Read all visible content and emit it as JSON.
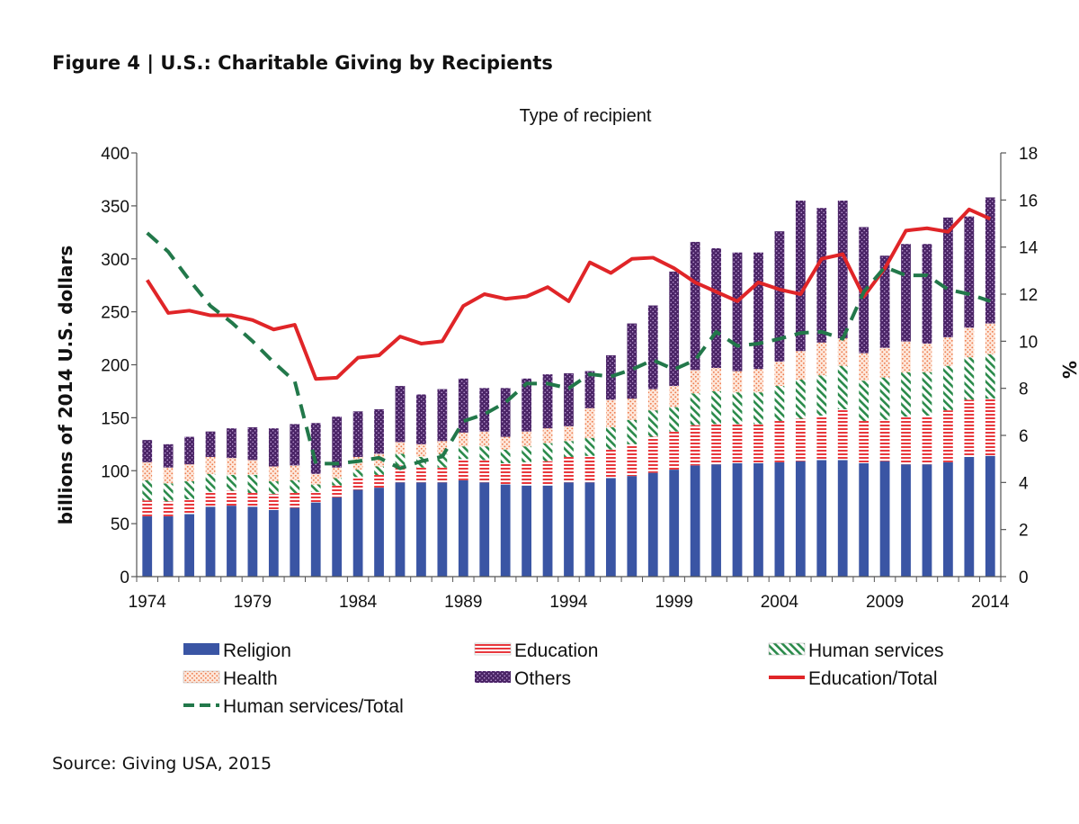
{
  "figure": {
    "title": "Figure 4 | U.S.: Charitable Giving by Recipients",
    "source": "Source: Giving USA, 2015"
  },
  "colors": {
    "religion": "#3a55a4",
    "education": "#e8383d",
    "human_services": "#2a8a4a",
    "health": "#f4a07a",
    "others": "#4a2466",
    "education_total_line": "#e02528",
    "human_services_total_line": "#22784a"
  },
  "chart_data": {
    "type": "bar",
    "stacked": true,
    "title": "Type of recipient",
    "ylabel": "billions of 2014 U.S. dollars",
    "y2label": "%",
    "ylim": [
      0,
      400
    ],
    "y2lim": [
      0,
      18
    ],
    "yticks": [
      0,
      50,
      100,
      150,
      200,
      250,
      300,
      350,
      400
    ],
    "y2ticks": [
      0,
      2,
      4,
      6,
      8,
      10,
      12,
      14,
      16,
      18
    ],
    "xtick_labels": [
      "1974",
      "1979",
      "1984",
      "1989",
      "1994",
      "1999",
      "2004",
      "2009",
      "2014"
    ],
    "gridlines": false,
    "legend_position": "bottom",
    "categories": [
      1974,
      1975,
      1976,
      1977,
      1978,
      1979,
      1980,
      1981,
      1982,
      1983,
      1984,
      1985,
      1986,
      1987,
      1988,
      1989,
      1990,
      1991,
      1992,
      1993,
      1994,
      1995,
      1996,
      1997,
      1998,
      1999,
      2000,
      2001,
      2002,
      2003,
      2004,
      2005,
      2006,
      2007,
      2008,
      2009,
      2010,
      2011,
      2012,
      2013,
      2014
    ],
    "series": [
      {
        "name": "Religion",
        "key": "religion",
        "axis": "left",
        "kind": "bar",
        "values": [
          57,
          57,
          59,
          66,
          67,
          66,
          63,
          65,
          70,
          75,
          82,
          84,
          89,
          89,
          89,
          91,
          89,
          87,
          86,
          86,
          89,
          89,
          93,
          95,
          98,
          101,
          105,
          106,
          107,
          107,
          108,
          109,
          110,
          110,
          107,
          109,
          106,
          106,
          108,
          113,
          114
        ]
      },
      {
        "name": "Education",
        "key": "education",
        "axis": "left",
        "kind": "bar",
        "values": [
          15,
          14,
          14,
          14,
          14,
          13,
          15,
          14,
          10,
          11,
          12,
          12,
          16,
          14,
          14,
          20,
          21,
          20,
          22,
          23,
          24,
          25,
          27,
          30,
          34,
          36,
          38,
          38,
          37,
          37,
          39,
          40,
          42,
          48,
          40,
          39,
          45,
          46,
          49,
          54,
          54
        ]
      },
      {
        "name": "Human services",
        "key": "human_services",
        "axis": "left",
        "kind": "bar",
        "values": [
          19,
          17,
          17,
          17,
          15,
          17,
          12,
          12,
          7,
          7,
          7,
          8,
          11,
          10,
          13,
          12,
          13,
          13,
          15,
          17,
          15,
          17,
          21,
          23,
          25,
          23,
          30,
          31,
          30,
          30,
          33,
          37,
          38,
          41,
          38,
          40,
          42,
          41,
          42,
          40,
          42
        ]
      },
      {
        "name": "Health",
        "key": "health",
        "axis": "left",
        "kind": "bar",
        "values": [
          17,
          15,
          16,
          16,
          16,
          14,
          14,
          14,
          10,
          10,
          12,
          12,
          11,
          12,
          12,
          13,
          14,
          12,
          14,
          14,
          14,
          28,
          26,
          20,
          20,
          20,
          22,
          22,
          20,
          22,
          23,
          27,
          31,
          26,
          26,
          28,
          29,
          27,
          27,
          28,
          29
        ]
      },
      {
        "name": "Others",
        "key": "others",
        "axis": "left",
        "kind": "bar",
        "values": [
          21,
          22,
          26,
          24,
          28,
          31,
          36,
          39,
          48,
          48,
          43,
          42,
          53,
          47,
          49,
          51,
          41,
          46,
          50,
          51,
          50,
          35,
          42,
          71,
          79,
          108,
          121,
          113,
          112,
          110,
          123,
          142,
          127,
          130,
          119,
          87,
          92,
          94,
          113,
          105,
          119
        ]
      },
      {
        "name": "Education/Total",
        "key": "education_total_line",
        "axis": "right",
        "kind": "line",
        "values": [
          12.6,
          11.2,
          11.3,
          11.1,
          11.1,
          10.9,
          10.5,
          10.7,
          8.4,
          8.45,
          9.3,
          9.4,
          10.2,
          9.9,
          10.0,
          11.5,
          12.0,
          11.8,
          11.9,
          12.3,
          11.7,
          13.35,
          12.9,
          13.5,
          13.55,
          13.1,
          12.5,
          12.1,
          11.7,
          12.5,
          12.2,
          12.0,
          13.5,
          13.7,
          11.9,
          13.1,
          14.7,
          14.8,
          14.65,
          15.6,
          15.2
        ]
      },
      {
        "name": "Human services/Total",
        "key": "human_services_total_line",
        "axis": "right",
        "kind": "line",
        "dashed": true,
        "values": [
          14.6,
          13.8,
          12.6,
          11.5,
          10.8,
          10.0,
          9.1,
          8.3,
          4.8,
          4.8,
          4.9,
          5.05,
          4.6,
          4.9,
          5.1,
          6.6,
          6.9,
          7.4,
          8.2,
          8.2,
          8.0,
          8.6,
          8.5,
          8.8,
          9.2,
          8.8,
          9.2,
          10.4,
          9.8,
          9.9,
          10.1,
          10.35,
          10.4,
          10.1,
          12.1,
          13.15,
          12.8,
          12.8,
          12.2,
          12.0,
          11.7
        ]
      }
    ]
  }
}
